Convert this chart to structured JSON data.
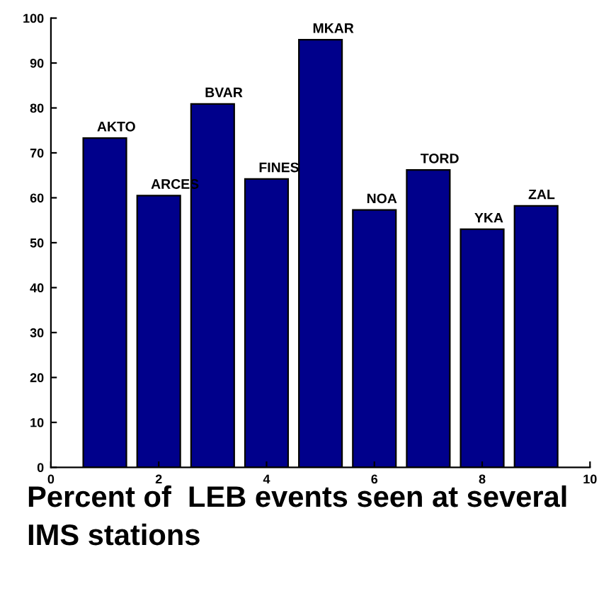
{
  "chart_data": {
    "type": "bar",
    "title": "Percent of  LEB events seen at several IMS stations",
    "x": [
      1,
      2,
      3,
      4,
      5,
      6,
      7,
      8,
      9
    ],
    "values": [
      73.3,
      60.5,
      80.9,
      64.2,
      95.2,
      57.3,
      66.2,
      53.0,
      58.2
    ],
    "color": "#00008b",
    "annotations": [
      {
        "text": "AKTO",
        "x": 1,
        "y": 73.3
      },
      {
        "text": "ARCES",
        "x": 2,
        "y": 60.5
      },
      {
        "text": "BVAR",
        "x": 3,
        "y": 80.9
      },
      {
        "text": "FINES",
        "x": 4,
        "y": 64.2
      },
      {
        "text": "MKAR",
        "x": 5,
        "y": 95.2
      },
      {
        "text": "NOA",
        "x": 6,
        "y": 57.3
      },
      {
        "text": "TORD",
        "x": 7,
        "y": 66.2
      },
      {
        "text": "YKA",
        "x": 8,
        "y": 53.0
      },
      {
        "text": "ZAL",
        "x": 9,
        "y": 58.2
      }
    ],
    "xlim": [
      0,
      10
    ],
    "xticks": [
      0,
      2,
      4,
      6,
      8,
      10
    ],
    "ylim": [
      0,
      100
    ],
    "yticks": [
      0,
      10,
      20,
      30,
      40,
      50,
      60,
      70,
      80,
      90,
      100
    ],
    "grid": false,
    "legend": false
  }
}
